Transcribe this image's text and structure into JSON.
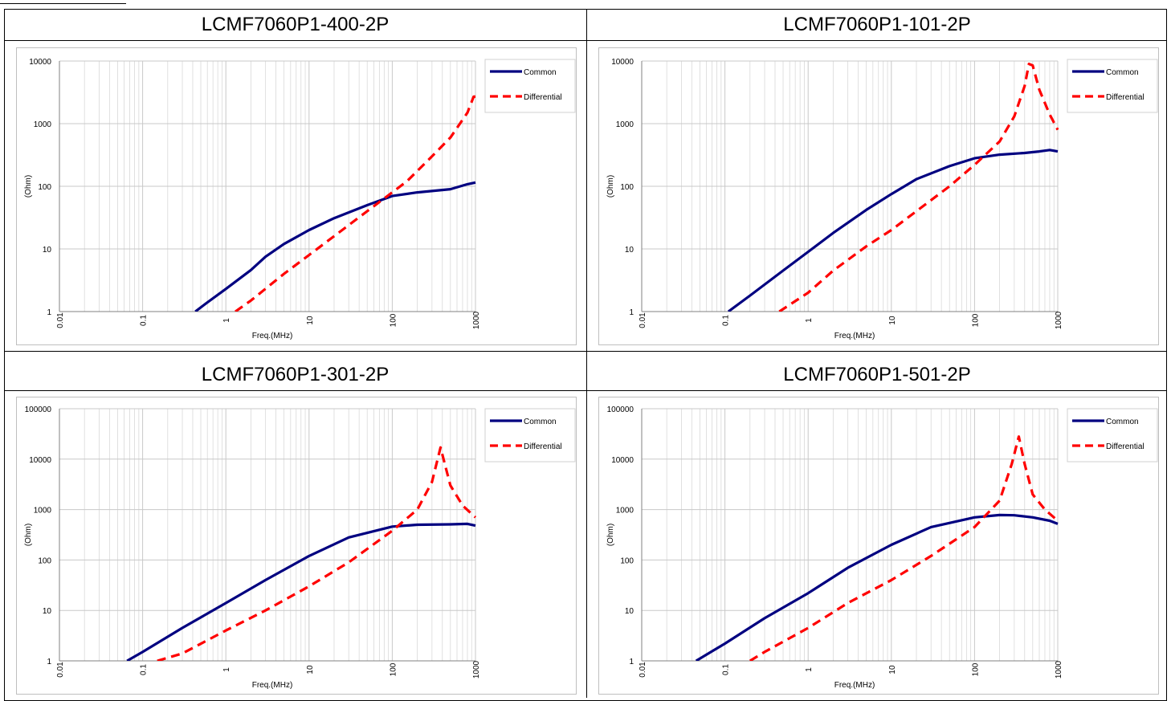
{
  "colors": {
    "common": "#000080",
    "differential": "#ff0000",
    "grid": "#d9d9d9"
  },
  "chart_data": [
    {
      "type": "line",
      "title": "LCMF7060P1-400-2P",
      "xlabel": "Freq.(MHz)",
      "ylabel": "(Ohm)",
      "xscale": "log",
      "yscale": "log",
      "xlim": [
        0.01,
        1000
      ],
      "ylim": [
        1,
        10000
      ],
      "xticks": [
        "0.01",
        "0.1",
        "1",
        "10",
        "100",
        "1000"
      ],
      "yticks": [
        "1",
        "10",
        "100",
        "1000",
        "10000"
      ],
      "grid": true,
      "legend": "top-right",
      "series": [
        {
          "name": "Common",
          "x": [
            0.43,
            0.6,
            1,
            2,
            3,
            5,
            10,
            20,
            50,
            100,
            200,
            500,
            800,
            1000
          ],
          "y": [
            1,
            1.4,
            2.3,
            4.6,
            7.5,
            12,
            20,
            31,
            50,
            70,
            80,
            90,
            108,
            115
          ]
        },
        {
          "name": "Differential",
          "x": [
            1.3,
            2,
            5,
            10,
            20,
            50,
            90,
            150,
            300,
            500,
            800,
            950,
            1000
          ],
          "y": [
            1,
            1.5,
            4,
            8,
            16,
            40,
            72,
            120,
            300,
            600,
            1500,
            2700,
            2700
          ]
        }
      ]
    },
    {
      "type": "line",
      "title": "LCMF7060P1-101-2P",
      "xlabel": "Freq.(MHz)",
      "ylabel": "(Ohm)",
      "xscale": "log",
      "yscale": "log",
      "xlim": [
        0.01,
        1000
      ],
      "ylim": [
        1,
        10000
      ],
      "xticks": [
        "0.01",
        "0.1",
        "1",
        "10",
        "100",
        "1000"
      ],
      "yticks": [
        "1",
        "10",
        "100",
        "1000",
        "10000"
      ],
      "grid": true,
      "legend": "top-right",
      "series": [
        {
          "name": "Common",
          "x": [
            0.11,
            0.2,
            0.5,
            1,
            2,
            5,
            10,
            20,
            50,
            100,
            200,
            400,
            600,
            800,
            1000
          ],
          "y": [
            1,
            1.8,
            4.5,
            9,
            18,
            42,
            75,
            130,
            210,
            280,
            320,
            340,
            360,
            380,
            360
          ]
        },
        {
          "name": "Differential",
          "x": [
            0.45,
            1,
            2,
            5,
            10,
            20,
            50,
            100,
            200,
            300,
            400,
            450,
            500,
            600,
            800,
            1000
          ],
          "y": [
            1,
            2,
            4.5,
            11,
            20,
            40,
            100,
            220,
            520,
            1300,
            4000,
            9000,
            8500,
            3500,
            1400,
            800
          ]
        }
      ]
    },
    {
      "type": "line",
      "title": "LCMF7060P1-301-2P",
      "xlabel": "Freq.(MHz)",
      "ylabel": "(Ohm)",
      "xscale": "log",
      "yscale": "log",
      "xlim": [
        0.01,
        1000
      ],
      "ylim": [
        1,
        100000
      ],
      "xticks": [
        "0.01",
        "0.1",
        "1",
        "10",
        "100",
        "1000"
      ],
      "yticks": [
        "1",
        "10",
        "100",
        "1000",
        "10000",
        "100000"
      ],
      "grid": true,
      "legend": "top-right",
      "series": [
        {
          "name": "Common",
          "x": [
            0.065,
            0.1,
            0.3,
            1,
            3,
            10,
            30,
            100,
            200,
            500,
            800,
            1000
          ],
          "y": [
            1,
            1.5,
            4.5,
            14,
            40,
            120,
            280,
            460,
            500,
            510,
            520,
            480
          ]
        },
        {
          "name": "Differential",
          "x": [
            0.15,
            0.3,
            1,
            3,
            10,
            30,
            100,
            200,
            300,
            380,
            420,
            500,
            700,
            1000
          ],
          "y": [
            1,
            1.4,
            4,
            10,
            30,
            90,
            380,
            1000,
            3500,
            17000,
            9000,
            3000,
            1200,
            700
          ]
        }
      ]
    },
    {
      "type": "line",
      "title": "LCMF7060P1-501-2P",
      "xlabel": "Freq.(MHz)",
      "ylabel": "(Ohm)",
      "xscale": "log",
      "yscale": "log",
      "xlim": [
        0.01,
        1000
      ],
      "ylim": [
        1,
        100000
      ],
      "xticks": [
        "0.01",
        "0.1",
        "1",
        "10",
        "100",
        "1000"
      ],
      "yticks": [
        "1",
        "10",
        "100",
        "1000",
        "10000",
        "100000"
      ],
      "grid": true,
      "legend": "top-right",
      "series": [
        {
          "name": "Common",
          "x": [
            0.045,
            0.1,
            0.3,
            1,
            3,
            10,
            30,
            100,
            200,
            300,
            500,
            800,
            1000
          ],
          "y": [
            1,
            2.2,
            7,
            22,
            70,
            200,
            450,
            700,
            780,
            770,
            700,
            600,
            520
          ]
        },
        {
          "name": "Differential",
          "x": [
            0.2,
            0.3,
            1,
            3,
            10,
            30,
            100,
            200,
            280,
            340,
            400,
            500,
            700,
            1000
          ],
          "y": [
            1,
            1.5,
            4.5,
            14,
            40,
            120,
            450,
            1500,
            8000,
            28000,
            8000,
            2000,
            1000,
            600
          ]
        }
      ]
    }
  ]
}
